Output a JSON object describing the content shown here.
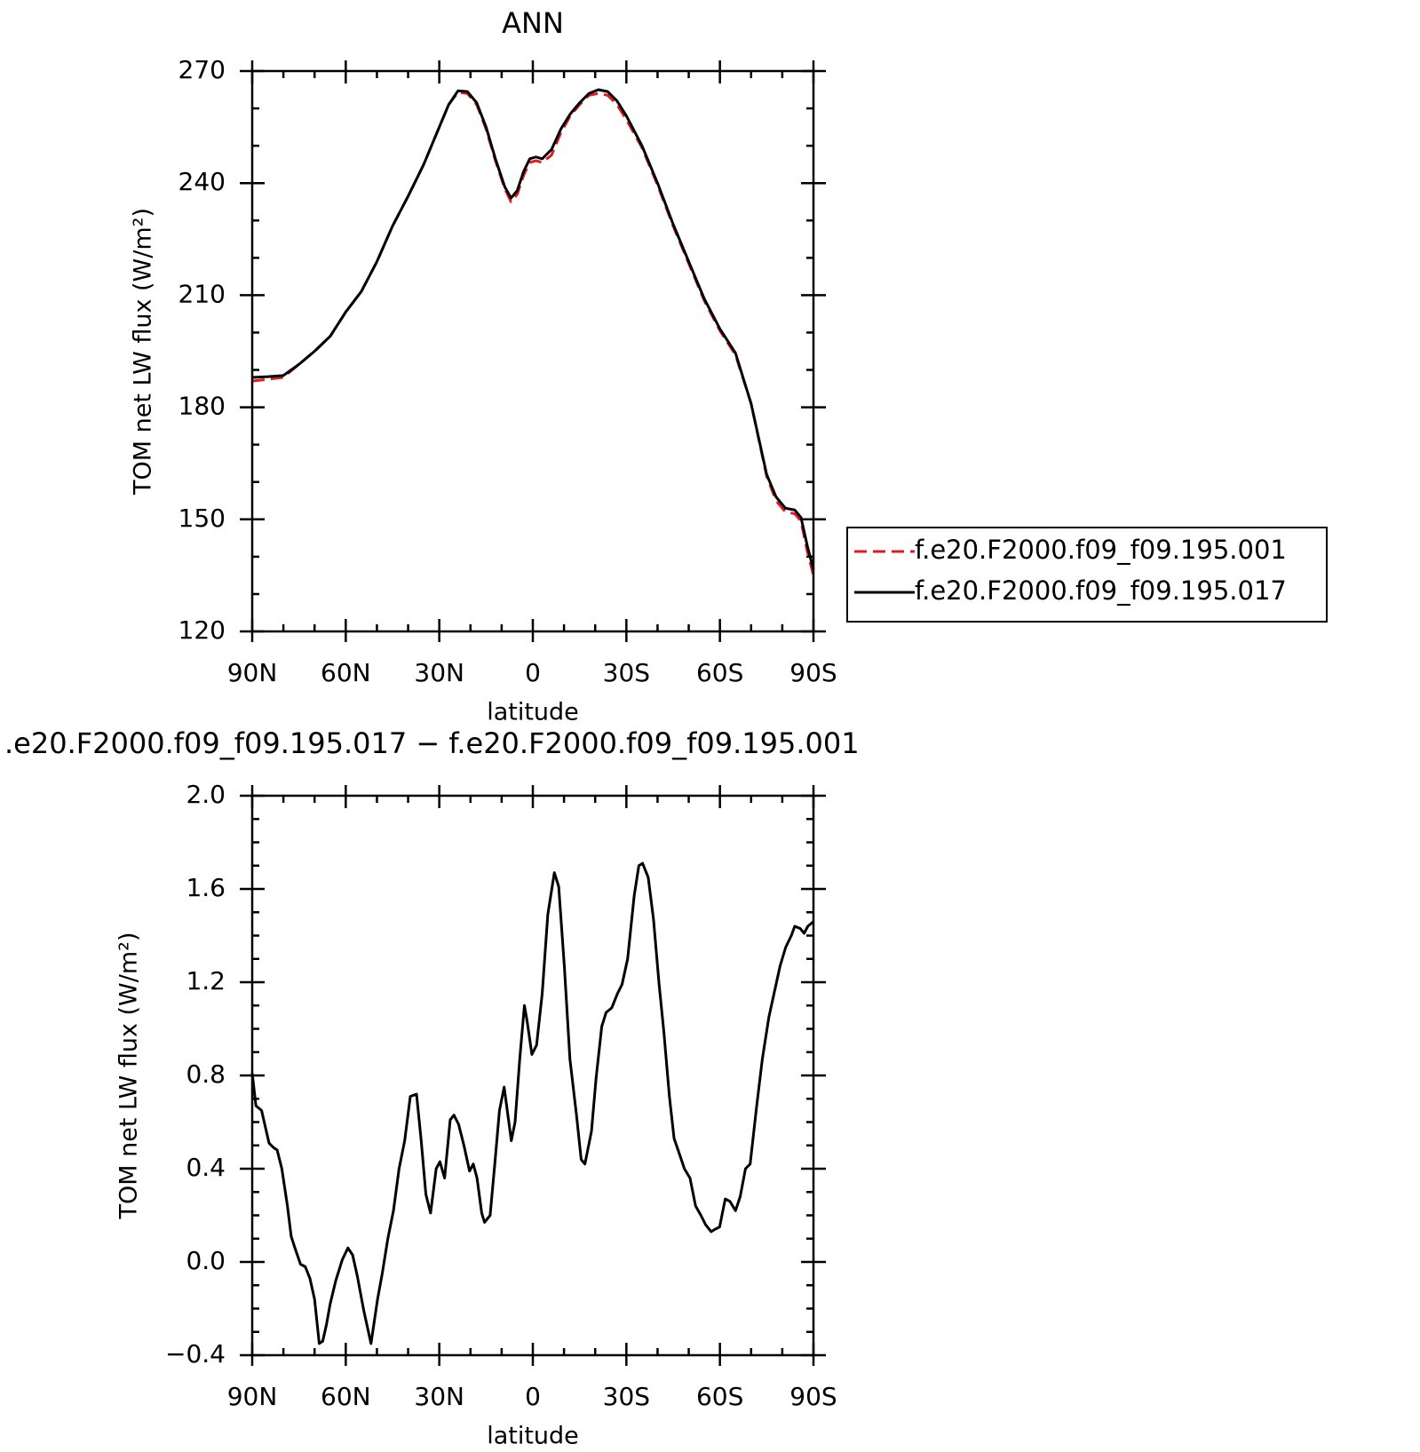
{
  "chart_data": [
    {
      "type": "line",
      "title": "ANN",
      "x_label": "latitude",
      "y_label": "TOM net LW flux (W/m²)",
      "x": [
        90,
        85,
        80,
        75,
        70,
        65,
        60,
        55,
        50,
        45,
        40,
        35,
        30,
        27,
        24,
        21,
        18,
        15,
        12,
        9,
        7,
        5,
        3,
        1,
        -1,
        -3,
        -6,
        -9,
        -12,
        -15,
        -18,
        -21,
        -24,
        -27,
        -30,
        -35,
        -40,
        -45,
        -50,
        -55,
        -60,
        -65,
        -70,
        -75,
        -78,
        -81,
        -84,
        -86,
        -88,
        -90
      ],
      "series": [
        {
          "name": "f.e20.F2000.f09_f09.195.001",
          "color": "#e41a1c",
          "line_style": "dashed",
          "values": [
            187,
            187.5,
            188,
            191.5,
            195,
            199,
            205.5,
            211,
            219,
            228.5,
            236.5,
            245,
            255,
            261,
            264.3,
            264,
            261,
            254.5,
            246,
            238.5,
            235,
            237,
            242,
            245.5,
            246,
            245.5,
            247.5,
            253.5,
            258,
            261,
            263.5,
            264,
            263.5,
            261,
            257,
            249.5,
            239.5,
            228.5,
            218.5,
            208.5,
            200.5,
            194,
            181,
            161.5,
            155,
            152,
            151.5,
            149.5,
            141.5,
            135
          ]
        },
        {
          "name": "f.e20.F2000.f09_f09.195.017",
          "color": "#000000",
          "line_style": "solid",
          "values": [
            188,
            188.2,
            188.5,
            191.5,
            195,
            199,
            205.5,
            211,
            219,
            228.5,
            236.5,
            245,
            255,
            261,
            264.7,
            264.5,
            261.5,
            255,
            246.5,
            239,
            236,
            238,
            243,
            246.5,
            247,
            246.5,
            249,
            254.5,
            258.5,
            261.5,
            264,
            265,
            264.5,
            262,
            258,
            250,
            240,
            229,
            219,
            209,
            201,
            194.5,
            181,
            162,
            156,
            153,
            152.5,
            150.5,
            143,
            136.5
          ]
        }
      ],
      "xlim": [
        90,
        -90
      ],
      "xticks": [
        {
          "value": 90,
          "label": "90N"
        },
        {
          "value": 60,
          "label": "60N"
        },
        {
          "value": 30,
          "label": "30N"
        },
        0,
        {
          "value": -30,
          "label": "30S"
        },
        {
          "value": -60,
          "label": "60S"
        },
        {
          "value": -90,
          "label": "90S"
        }
      ],
      "ylim": [
        120,
        270
      ],
      "yticks": [
        120,
        150,
        180,
        210,
        240,
        270
      ],
      "legend": "outside-right"
    },
    {
      "type": "line",
      "title": ".e20.F2000.f09_f09.195.017 − f.e20.F2000.f09_f09.195.001",
      "x_label": "latitude",
      "y_label": "TOM net LW flux (W/m²)",
      "x": [
        90,
        88.8,
        87.0,
        84.6,
        83.1,
        82.0,
        80.5,
        78.7,
        77.5,
        76.3,
        74.5,
        73.0,
        71.5,
        70.0,
        68.5,
        67.4,
        66.2,
        65.0,
        63.2,
        61.1,
        59.3,
        57.8,
        56.3,
        54.2,
        51.9,
        49.8,
        48.3,
        46.5,
        44.7,
        42.9,
        41.1,
        39.3,
        37.3,
        35.8,
        34.3,
        32.8,
        31.0,
        29.8,
        28.3,
        26.5,
        25.3,
        23.8,
        22.1,
        20.3,
        19.1,
        17.9,
        16.4,
        15.5,
        13.7,
        12.2,
        10.7,
        9.2,
        8.0,
        6.9,
        5.7,
        4.2,
        2.7,
        1.8,
        0.3,
        -1.2,
        -3.0,
        -4.8,
        -6.9,
        -8.3,
        -10.1,
        -11.9,
        -14.0,
        -15.5,
        -16.7,
        -18.8,
        -20.3,
        -22.1,
        -23.5,
        -25.3,
        -27.1,
        -28.6,
        -30.4,
        -32.5,
        -34.0,
        -35.2,
        -37.0,
        -38.7,
        -40.5,
        -42.0,
        -43.8,
        -45.3,
        -47.1,
        -48.6,
        -50.4,
        -52.2,
        -53.9,
        -55.4,
        -57.2,
        -58.4,
        -59.9,
        -61.7,
        -63.2,
        -65.0,
        -66.5,
        -68.2,
        -69.7,
        -71.8,
        -73.6,
        -75.7,
        -77.5,
        -79.3,
        -81.1,
        -82.9,
        -84.0,
        -85.8,
        -87.0,
        -88.2,
        -90
      ],
      "series": [
        {
          "color": "#000000",
          "line_style": "solid",
          "values": [
            0.81,
            0.67,
            0.65,
            0.51,
            0.49,
            0.48,
            0.4,
            0.24,
            0.11,
            0.06,
            -0.01,
            -0.02,
            -0.07,
            -0.16,
            -0.35,
            -0.34,
            -0.27,
            -0.18,
            -0.08,
            0.01,
            0.06,
            0.03,
            -0.06,
            -0.21,
            -0.35,
            -0.16,
            -0.05,
            0.1,
            0.22,
            0.4,
            0.52,
            0.71,
            0.72,
            0.52,
            0.29,
            0.21,
            0.4,
            0.43,
            0.36,
            0.61,
            0.63,
            0.59,
            0.5,
            0.39,
            0.42,
            0.36,
            0.21,
            0.17,
            0.2,
            0.42,
            0.65,
            0.75,
            0.63,
            0.52,
            0.6,
            0.87,
            1.1,
            1.03,
            0.89,
            0.93,
            1.15,
            1.49,
            1.67,
            1.61,
            1.27,
            0.87,
            0.63,
            0.44,
            0.42,
            0.56,
            0.79,
            1.01,
            1.07,
            1.09,
            1.15,
            1.19,
            1.3,
            1.57,
            1.7,
            1.71,
            1.65,
            1.47,
            1.19,
            0.99,
            0.71,
            0.53,
            0.46,
            0.4,
            0.36,
            0.24,
            0.2,
            0.16,
            0.13,
            0.14,
            0.15,
            0.27,
            0.26,
            0.22,
            0.28,
            0.4,
            0.42,
            0.67,
            0.87,
            1.05,
            1.16,
            1.27,
            1.35,
            1.4,
            1.44,
            1.43,
            1.41,
            1.44,
            1.46
          ]
        }
      ],
      "xlim": [
        90,
        -90
      ],
      "xticks": [
        {
          "value": 90,
          "label": "90N"
        },
        {
          "value": 60,
          "label": "60N"
        },
        {
          "value": 30,
          "label": "30N"
        },
        0,
        {
          "value": -30,
          "label": "30S"
        },
        {
          "value": -60,
          "label": "60S"
        },
        {
          "value": -90,
          "label": "90S"
        }
      ],
      "ylim": [
        -0.4,
        2.0
      ],
      "yticks": [
        {
          "value": -0.4,
          "label": "−0.4"
        },
        {
          "value": 0,
          "label": "0.0"
        },
        0.4,
        0.8,
        1.2,
        1.6,
        {
          "value": 2,
          "label": "2.0"
        }
      ]
    }
  ]
}
